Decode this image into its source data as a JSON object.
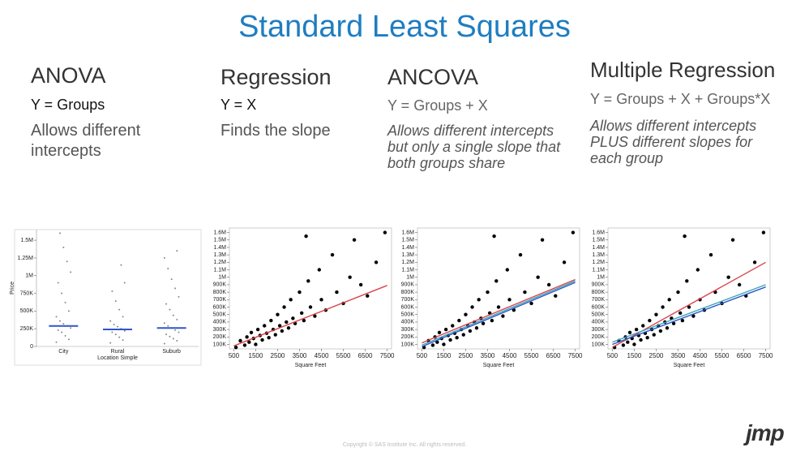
{
  "header": {
    "title": "Standard Least Squares"
  },
  "columns": [
    {
      "heading": "ANOVA",
      "formula": "Y = Groups",
      "description": "Allows different intercepts"
    },
    {
      "heading": "Regression",
      "formula": "Y = X",
      "description": "Finds the slope"
    },
    {
      "heading": "ANCOVA",
      "formula": "Y = Groups + X",
      "description": "Allows different intercepts but only a single slope that both groups share"
    },
    {
      "heading": "Multiple Regression",
      "formula": "Y = Groups + X + Groups*X",
      "description": "Allows different intercepts PLUS different slopes for each group"
    }
  ],
  "chart_data": [
    {
      "type": "strip",
      "x_label": "Location Simple",
      "y_label": "Price",
      "categories": [
        "City",
        "Rural",
        "Suburb"
      ],
      "points": [
        [
          60000,
          100000,
          150000,
          200000,
          230000,
          260000,
          290000,
          320000,
          360000,
          420000,
          500000,
          620000,
          750000,
          900000,
          1050000,
          1200000,
          1400000,
          1600000
        ],
        [
          50000,
          90000,
          130000,
          170000,
          200000,
          220000,
          250000,
          280000,
          310000,
          360000,
          420000,
          520000,
          640000,
          780000,
          900000,
          1150000
        ],
        [
          40000,
          80000,
          110000,
          140000,
          170000,
          200000,
          230000,
          260000,
          290000,
          330000,
          380000,
          440000,
          520000,
          600000,
          700000,
          820000,
          950000,
          1100000,
          1250000,
          1350000
        ]
      ],
      "color": "#888888",
      "means": [
        290000,
        240000,
        260000
      ],
      "mean_color": "#2f56c8",
      "ylim": [
        0,
        1650000
      ],
      "yticks": [
        0,
        {
          "value": 250000,
          "label": "250K"
        },
        {
          "value": 500000,
          "label": "500K"
        },
        {
          "value": 750000,
          "label": "750K"
        },
        {
          "value": 1000000,
          "label": "1M"
        },
        {
          "value": 1250000,
          "label": "1.25M"
        },
        {
          "value": 1500000,
          "label": "1.5M"
        }
      ]
    },
    {
      "type": "scatter",
      "x_label": "Square Feet",
      "series": [
        {
          "color": "#000000",
          "x": [
            600,
            800,
            1000,
            1100,
            1200,
            1300,
            1400,
            1500,
            1600,
            1700,
            1800,
            1900,
            2000,
            2100,
            2200,
            2300,
            2400,
            2500,
            2600,
            2700,
            2800,
            2900,
            3000,
            3100,
            3200,
            3300,
            3500,
            3600,
            3700,
            3900,
            4000,
            4200,
            4400,
            4500,
            4700,
            5000,
            5200,
            5500,
            5800,
            6000,
            6300,
            6600,
            7000,
            7400,
            3800
          ],
          "values": [
            60000,
            150000,
            90000,
            200000,
            130000,
            260000,
            180000,
            100000,
            300000,
            220000,
            160000,
            350000,
            250000,
            190000,
            420000,
            300000,
            230000,
            500000,
            350000,
            280000,
            600000,
            400000,
            320000,
            700000,
            450000,
            380000,
            800000,
            520000,
            420000,
            950000,
            600000,
            480000,
            1100000,
            700000,
            560000,
            1300000,
            800000,
            650000,
            1000000,
            1500000,
            900000,
            750000,
            1200000,
            1600000,
            1550000
          ]
        }
      ],
      "fit_lines": [
        {
          "color": "#d9434b",
          "x": [
            500,
            7500
          ],
          "values": [
            80000,
            890000
          ]
        }
      ],
      "xlim": [
        300,
        7700
      ],
      "xticks": [
        500,
        1500,
        2500,
        3500,
        4500,
        5500,
        6500,
        7500
      ],
      "ylim": [
        40000,
        1660000
      ],
      "yticks": [
        {
          "value": 100000,
          "label": "100K"
        },
        {
          "value": 200000,
          "label": "200K"
        },
        {
          "value": 300000,
          "label": "300K"
        },
        {
          "value": 400000,
          "label": "400K"
        },
        {
          "value": 500000,
          "label": "500K"
        },
        {
          "value": 600000,
          "label": "600K"
        },
        {
          "value": 700000,
          "label": "700K"
        },
        {
          "value": 800000,
          "label": "800K"
        },
        {
          "value": 900000,
          "label": "900K"
        },
        {
          "value": 1000000,
          "label": "1M"
        },
        {
          "value": 1100000,
          "label": "1.1M"
        },
        {
          "value": 1200000,
          "label": "1.2M"
        },
        {
          "value": 1300000,
          "label": "1.3M"
        },
        {
          "value": 1400000,
          "label": "1.4M"
        },
        {
          "value": 1500000,
          "label": "1.5M"
        },
        {
          "value": 1600000,
          "label": "1.6M"
        }
      ]
    },
    {
      "type": "scatter",
      "x_label": "Square Feet",
      "series": [
        {
          "color": "#000000",
          "x": [
            600,
            800,
            1000,
            1100,
            1200,
            1300,
            1400,
            1500,
            1600,
            1700,
            1800,
            1900,
            2000,
            2100,
            2200,
            2300,
            2400,
            2500,
            2600,
            2700,
            2800,
            2900,
            3000,
            3100,
            3200,
            3300,
            3500,
            3600,
            3700,
            3900,
            4000,
            4200,
            4400,
            4500,
            4700,
            5000,
            5200,
            5500,
            5800,
            6000,
            6300,
            6600,
            7000,
            7400,
            3800
          ],
          "values": [
            60000,
            150000,
            90000,
            200000,
            130000,
            260000,
            180000,
            100000,
            300000,
            220000,
            160000,
            350000,
            250000,
            190000,
            420000,
            300000,
            230000,
            500000,
            350000,
            280000,
            600000,
            400000,
            320000,
            700000,
            450000,
            380000,
            800000,
            520000,
            420000,
            950000,
            600000,
            480000,
            1100000,
            700000,
            560000,
            1300000,
            800000,
            650000,
            1000000,
            1500000,
            900000,
            750000,
            1200000,
            1600000,
            1550000
          ]
        }
      ],
      "fit_lines": [
        {
          "color": "#d9434b",
          "x": [
            500,
            7500
          ],
          "values": [
            120000,
            970000
          ]
        },
        {
          "color": "#2f56c8",
          "x": [
            500,
            7500
          ],
          "values": [
            70000,
            930000
          ]
        },
        {
          "color": "#3aa6b9",
          "x": [
            500,
            7500
          ],
          "values": [
            90000,
            950000
          ]
        }
      ],
      "xlim": [
        300,
        7700
      ],
      "xticks": [
        500,
        1500,
        2500,
        3500,
        4500,
        5500,
        6500,
        7500
      ],
      "ylim": [
        40000,
        1660000
      ],
      "yticks": [
        {
          "value": 100000,
          "label": "100K"
        },
        {
          "value": 200000,
          "label": "200K"
        },
        {
          "value": 300000,
          "label": "300K"
        },
        {
          "value": 400000,
          "label": "400K"
        },
        {
          "value": 500000,
          "label": "500K"
        },
        {
          "value": 600000,
          "label": "600K"
        },
        {
          "value": 700000,
          "label": "700K"
        },
        {
          "value": 800000,
          "label": "800K"
        },
        {
          "value": 900000,
          "label": "900K"
        },
        {
          "value": 1000000,
          "label": "1M"
        },
        {
          "value": 1100000,
          "label": "1.1M"
        },
        {
          "value": 1200000,
          "label": "1.2M"
        },
        {
          "value": 1300000,
          "label": "1.3M"
        },
        {
          "value": 1400000,
          "label": "1.4M"
        },
        {
          "value": 1500000,
          "label": "1.5M"
        },
        {
          "value": 1600000,
          "label": "1.6M"
        }
      ]
    },
    {
      "type": "scatter",
      "x_label": "Square Feet",
      "series": [
        {
          "color": "#000000",
          "x": [
            600,
            800,
            1000,
            1100,
            1200,
            1300,
            1400,
            1500,
            1600,
            1700,
            1800,
            1900,
            2000,
            2100,
            2200,
            2300,
            2400,
            2500,
            2600,
            2700,
            2800,
            2900,
            3000,
            3100,
            3200,
            3300,
            3500,
            3600,
            3700,
            3900,
            4000,
            4200,
            4400,
            4500,
            4700,
            5000,
            5200,
            5500,
            5800,
            6000,
            6300,
            6600,
            7000,
            7400,
            3800
          ],
          "values": [
            60000,
            150000,
            90000,
            200000,
            130000,
            260000,
            180000,
            100000,
            300000,
            220000,
            160000,
            350000,
            250000,
            190000,
            420000,
            300000,
            230000,
            500000,
            350000,
            280000,
            600000,
            400000,
            320000,
            700000,
            450000,
            380000,
            800000,
            520000,
            420000,
            950000,
            600000,
            480000,
            1100000,
            700000,
            560000,
            1300000,
            800000,
            650000,
            1000000,
            1500000,
            900000,
            750000,
            1200000,
            1600000,
            1550000
          ]
        }
      ],
      "fit_lines": [
        {
          "color": "#d9434b",
          "x": [
            500,
            7500
          ],
          "values": [
            60000,
            1200000
          ]
        },
        {
          "color": "#2f56c8",
          "x": [
            500,
            7500
          ],
          "values": [
            100000,
            870000
          ]
        },
        {
          "color": "#3aa6b9",
          "x": [
            500,
            7500
          ],
          "values": [
            130000,
            900000
          ]
        }
      ],
      "xlim": [
        300,
        7700
      ],
      "xticks": [
        500,
        1500,
        2500,
        3500,
        4500,
        5500,
        6500,
        7500
      ],
      "ylim": [
        40000,
        1660000
      ],
      "yticks": [
        {
          "value": 100000,
          "label": "100K"
        },
        {
          "value": 200000,
          "label": "200K"
        },
        {
          "value": 300000,
          "label": "300K"
        },
        {
          "value": 400000,
          "label": "400K"
        },
        {
          "value": 500000,
          "label": "500K"
        },
        {
          "value": 600000,
          "label": "600K"
        },
        {
          "value": 700000,
          "label": "700K"
        },
        {
          "value": 800000,
          "label": "800K"
        },
        {
          "value": 900000,
          "label": "900K"
        },
        {
          "value": 1000000,
          "label": "1M"
        },
        {
          "value": 1100000,
          "label": "1.1M"
        },
        {
          "value": 1200000,
          "label": "1.2M"
        },
        {
          "value": 1300000,
          "label": "1.3M"
        },
        {
          "value": 1400000,
          "label": "1.4M"
        },
        {
          "value": 1500000,
          "label": "1.5M"
        },
        {
          "value": 1600000,
          "label": "1.6M"
        }
      ]
    }
  ],
  "footer": {
    "copyright": "Copyright © SAS Institute Inc. All rights reserved.",
    "logo": "jmp"
  }
}
